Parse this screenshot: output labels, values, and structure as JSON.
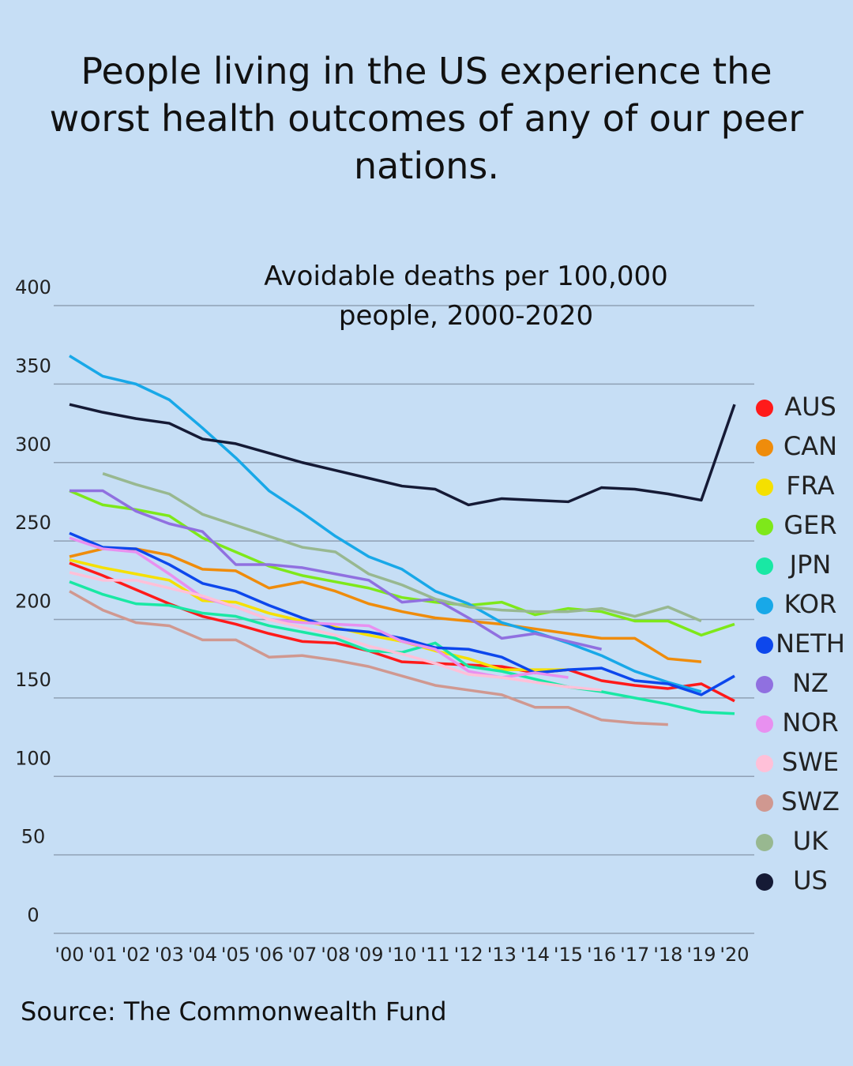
{
  "chart_data": {
    "type": "line",
    "title": "People living in the US experience the worst health outcomes of any of our peer nations.",
    "subtitle": "Avoidable deaths per 100,000 people, 2000-2020",
    "source": "Source: The Commonwealth Fund",
    "categories": [
      "'00",
      "'01",
      "'02",
      "'03",
      "'04",
      "'05",
      "'06",
      "'07",
      "'08",
      "'09",
      "'10",
      "'11",
      "'12",
      "'13",
      "'14",
      "'15",
      "'16",
      "'17",
      "'18",
      "'19",
      "'20"
    ],
    "ylim": [
      0,
      400
    ],
    "yticks": [
      0,
      50,
      100,
      150,
      200,
      250,
      300,
      350,
      400
    ],
    "grid": true,
    "legend": "right",
    "series": [
      {
        "name": "AUS",
        "color": "#ff1a1a",
        "values": [
          236,
          228,
          219,
          210,
          202,
          197,
          191,
          186,
          185,
          180,
          173,
          172,
          171,
          170,
          166,
          168,
          161,
          158,
          156,
          159,
          148
        ]
      },
      {
        "name": "CAN",
        "color": "#ef8c0b",
        "values": [
          240,
          245,
          245,
          241,
          232,
          231,
          220,
          224,
          218,
          210,
          205,
          201,
          199,
          197,
          194,
          191,
          188,
          188,
          175,
          173,
          null
        ]
      },
      {
        "name": "FRA",
        "color": "#f5e000",
        "values": [
          238,
          233,
          229,
          225,
          212,
          211,
          204,
          199,
          195,
          190,
          186,
          180,
          175,
          168,
          168,
          168,
          null,
          null,
          null,
          null,
          null
        ]
      },
      {
        "name": "GER",
        "color": "#7ee81a",
        "values": [
          282,
          273,
          270,
          266,
          252,
          243,
          234,
          228,
          224,
          220,
          214,
          211,
          209,
          211,
          203,
          207,
          205,
          199,
          199,
          190,
          197
        ]
      },
      {
        "name": "JPN",
        "color": "#19e8a4",
        "values": [
          224,
          216,
          210,
          209,
          204,
          202,
          196,
          192,
          188,
          180,
          179,
          185,
          170,
          167,
          162,
          157,
          154,
          150,
          146,
          141,
          140
        ]
      },
      {
        "name": "KOR",
        "color": "#18a8e8",
        "values": [
          368,
          355,
          350,
          340,
          322,
          303,
          282,
          268,
          253,
          240,
          232,
          218,
          210,
          198,
          192,
          185,
          177,
          167,
          160,
          154,
          null
        ]
      },
      {
        "name": "NETH",
        "color": "#0d47ec",
        "values": [
          255,
          246,
          245,
          235,
          223,
          218,
          209,
          201,
          194,
          192,
          188,
          182,
          181,
          176,
          166,
          168,
          169,
          161,
          159,
          152,
          164
        ]
      },
      {
        "name": "NZ",
        "color": "#9070e0",
        "values": [
          282,
          282,
          269,
          261,
          256,
          235,
          235,
          233,
          229,
          225,
          211,
          213,
          201,
          188,
          191,
          186,
          181,
          null,
          null,
          null,
          null
        ]
      },
      {
        "name": "NOR",
        "color": "#e890f0",
        "values": [
          252,
          245,
          243,
          229,
          214,
          208,
          200,
          198,
          197,
          196,
          186,
          181,
          167,
          163,
          166,
          163,
          null,
          null,
          null,
          null,
          null
        ]
      },
      {
        "name": "SWE",
        "color": "#ffc0d8",
        "values": [
          230,
          225,
          225,
          220,
          215,
          208,
          200,
          195,
          190,
          183,
          178,
          172,
          165,
          163,
          160,
          157,
          155,
          null,
          null,
          null,
          null
        ]
      },
      {
        "name": "SWZ",
        "color": "#d09890",
        "values": [
          218,
          206,
          198,
          196,
          187,
          187,
          176,
          177,
          174,
          170,
          164,
          158,
          155,
          152,
          144,
          144,
          136,
          134,
          133,
          null,
          null
        ]
      },
      {
        "name": "UK",
        "color": "#98b890",
        "values": [
          null,
          293,
          286,
          280,
          267,
          260,
          253,
          246,
          243,
          229,
          222,
          213,
          208,
          206,
          205,
          205,
          207,
          202,
          208,
          199,
          null
        ]
      },
      {
        "name": "US",
        "color": "#151a35",
        "values": [
          337,
          332,
          328,
          325,
          315,
          312,
          306,
          300,
          295,
          290,
          285,
          283,
          273,
          277,
          276,
          275,
          284,
          283,
          280,
          276,
          337
        ]
      }
    ]
  }
}
